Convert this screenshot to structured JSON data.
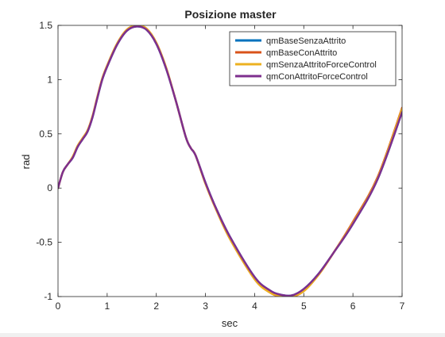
{
  "chart_data": {
    "type": "line",
    "title": "Posizione master",
    "xlabel": "sec",
    "ylabel": "rad",
    "xlim": [
      0,
      7
    ],
    "ylim": [
      -1,
      1.5
    ],
    "xticks": [
      0,
      1,
      2,
      3,
      4,
      5,
      6,
      7
    ],
    "yticks": [
      -1,
      -0.5,
      0,
      0.5,
      1,
      1.5
    ],
    "xtick_labels": [
      "0",
      "1",
      "2",
      "3",
      "4",
      "5",
      "6",
      "7"
    ],
    "ytick_labels": [
      "-1",
      "-0.5",
      "0",
      "0.5",
      "1",
      "1.5"
    ],
    "grid": false,
    "legend_position": "top-right",
    "series": [
      {
        "name": "qmBaseSenzaAttrito",
        "color": "#0072BD",
        "x": [
          0,
          0.1,
          0.2,
          0.3,
          0.4,
          0.5,
          0.6,
          0.7,
          0.8,
          0.9,
          1.0,
          1.2,
          1.4,
          1.6,
          1.8,
          2.0,
          2.2,
          2.4,
          2.6,
          2.7,
          2.8,
          3.0,
          3.2,
          3.5,
          4.0,
          4.3,
          4.5,
          4.75,
          5.0,
          5.3,
          5.6,
          6.0,
          6.5,
          7.0
        ],
        "y": [
          0,
          0.15,
          0.22,
          0.28,
          0.38,
          0.45,
          0.52,
          0.65,
          0.83,
          1.0,
          1.12,
          1.32,
          1.45,
          1.49,
          1.46,
          1.33,
          1.1,
          0.8,
          0.47,
          0.37,
          0.3,
          0.05,
          -0.17,
          -0.45,
          -0.82,
          -0.94,
          -0.98,
          -0.99,
          -0.93,
          -0.79,
          -0.6,
          -0.33,
          0.08,
          0.7
        ]
      },
      {
        "name": "qmBaseConAttrito",
        "color": "#D95319",
        "x": [
          0,
          0.1,
          0.2,
          0.3,
          0.4,
          0.5,
          0.6,
          0.7,
          0.8,
          0.9,
          1.0,
          1.2,
          1.4,
          1.6,
          1.8,
          2.0,
          2.2,
          2.4,
          2.6,
          2.7,
          2.8,
          3.0,
          3.2,
          3.5,
          4.0,
          4.3,
          4.5,
          4.75,
          5.0,
          5.3,
          5.6,
          6.0,
          6.5,
          7.0
        ],
        "y": [
          0,
          0.15,
          0.22,
          0.29,
          0.39,
          0.46,
          0.53,
          0.66,
          0.84,
          1.01,
          1.13,
          1.33,
          1.46,
          1.5,
          1.47,
          1.34,
          1.11,
          0.8,
          0.47,
          0.37,
          0.3,
          0.04,
          -0.18,
          -0.47,
          -0.84,
          -0.96,
          -0.995,
          -1.0,
          -0.95,
          -0.8,
          -0.6,
          -0.31,
          0.1,
          0.74
        ]
      },
      {
        "name": "qmSenzaAttritoForceControl",
        "color": "#EDB120",
        "x": [
          0,
          0.1,
          0.2,
          0.3,
          0.4,
          0.5,
          0.6,
          0.7,
          0.8,
          0.9,
          1.0,
          1.2,
          1.4,
          1.6,
          1.8,
          2.0,
          2.2,
          2.4,
          2.6,
          2.7,
          2.8,
          3.0,
          3.2,
          3.5,
          4.0,
          4.3,
          4.5,
          4.75,
          5.0,
          5.3,
          5.6,
          6.0,
          6.5,
          7.0
        ],
        "y": [
          0,
          0.15,
          0.22,
          0.29,
          0.39,
          0.46,
          0.53,
          0.66,
          0.84,
          1.01,
          1.13,
          1.33,
          1.46,
          1.5,
          1.47,
          1.34,
          1.11,
          0.8,
          0.47,
          0.37,
          0.3,
          0.04,
          -0.18,
          -0.47,
          -0.84,
          -0.96,
          -0.99,
          -0.995,
          -0.95,
          -0.8,
          -0.6,
          -0.32,
          0.09,
          0.73
        ]
      },
      {
        "name": "qmConAttritoForceControl",
        "color": "#7E2F8E",
        "x": [
          0,
          0.1,
          0.2,
          0.3,
          0.4,
          0.5,
          0.6,
          0.7,
          0.8,
          0.9,
          1.0,
          1.2,
          1.4,
          1.6,
          1.8,
          2.0,
          2.2,
          2.4,
          2.6,
          2.7,
          2.8,
          3.0,
          3.2,
          3.5,
          4.0,
          4.3,
          4.5,
          4.75,
          5.0,
          5.3,
          5.6,
          6.0,
          6.5,
          7.0
        ],
        "y": [
          0,
          0.15,
          0.22,
          0.28,
          0.38,
          0.45,
          0.52,
          0.65,
          0.83,
          1.0,
          1.12,
          1.32,
          1.45,
          1.49,
          1.46,
          1.33,
          1.1,
          0.8,
          0.47,
          0.37,
          0.3,
          0.05,
          -0.17,
          -0.45,
          -0.82,
          -0.94,
          -0.98,
          -0.99,
          -0.93,
          -0.79,
          -0.6,
          -0.33,
          0.08,
          0.7
        ]
      }
    ]
  }
}
